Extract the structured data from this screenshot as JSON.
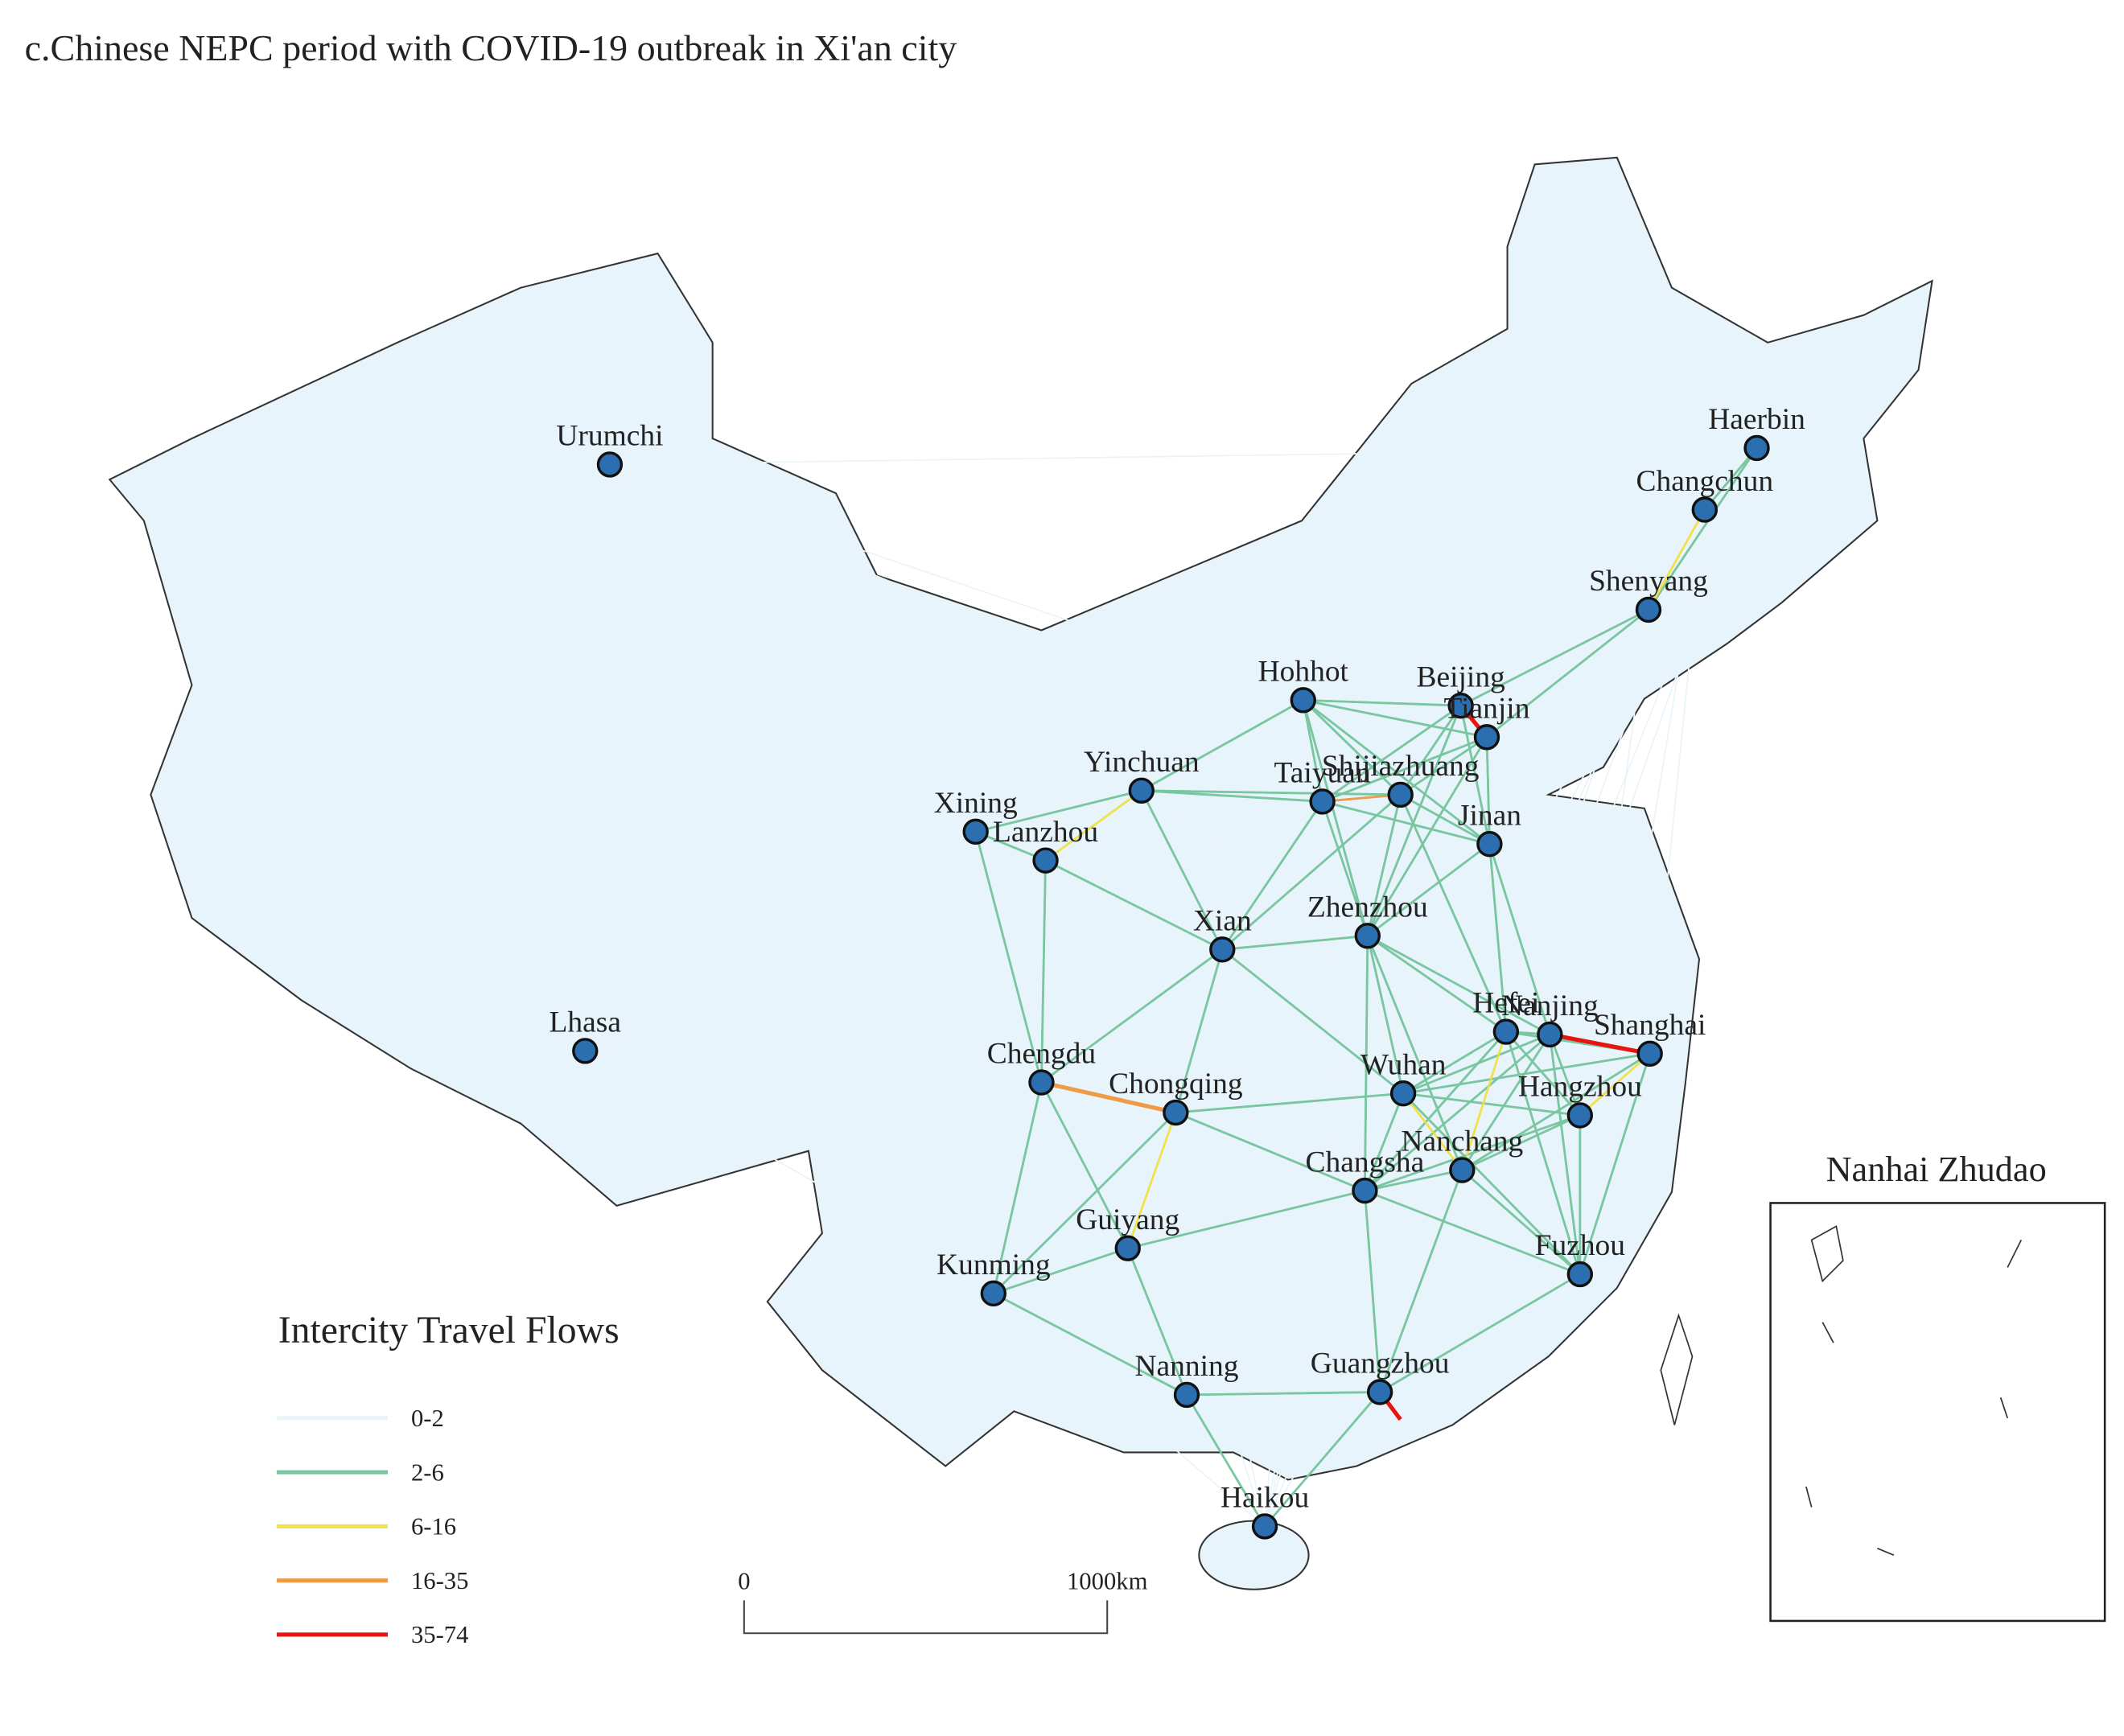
{
  "header": {
    "title": "c.Chinese NEPC period with COVID-19 outbreak in Xi'an city"
  },
  "cities": [
    "Urumchi",
    "Haerbin",
    "Changchun",
    "Shenyang",
    "Hohhot",
    "Beijing",
    "Tianjin",
    "Shijiazhuang",
    "Taiyuan",
    "Yinchuan",
    "Xining",
    "Lanzhou",
    "Jinan",
    "Xian",
    "Zhenzhou",
    "Lhasa",
    "Hefei",
    "Nanjing",
    "Shanghai",
    "Chengdu",
    "Chongqing",
    "Wuhan",
    "Hangzhou",
    "Changsha",
    "Nanchang",
    "Guiyang",
    "Kunming",
    "Fuzhou",
    "Nanning",
    "Guangzhou",
    "Haikou"
  ],
  "legend": {
    "title": "Intercity Travel Flows",
    "items": [
      {
        "label": "0-2",
        "color": "#e9f4fa"
      },
      {
        "label": "2-6",
        "color": "#78c6a0"
      },
      {
        "label": "6-16",
        "color": "#f2e14a"
      },
      {
        "label": "16-35",
        "color": "#f09a45"
      },
      {
        "label": "35-74",
        "color": "#e8140f"
      }
    ]
  },
  "scale_bar": {
    "start": "0",
    "end": "1000km"
  },
  "inset": {
    "title": "Nanhai Zhudao"
  }
}
